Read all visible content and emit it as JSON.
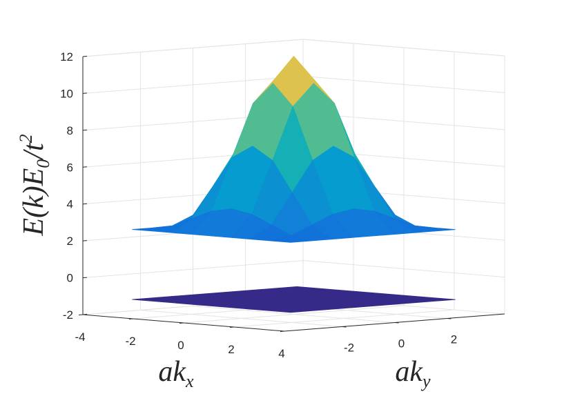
{
  "chart_data": {
    "type": "surface",
    "xlabel": [
      "ak",
      "x"
    ],
    "ylabel": [
      "ak",
      "y"
    ],
    "zlabel": [
      "E(k)E",
      "0",
      "/t",
      "2"
    ],
    "xlim": [
      -4,
      4
    ],
    "ylim": [
      -4.2,
      4.2
    ],
    "zlim": [
      -2,
      12
    ],
    "xticks": [
      -4,
      -2,
      0,
      2,
      4
    ],
    "yticks": [
      -2,
      0,
      2
    ],
    "zticks": [
      -2,
      0,
      2,
      4,
      6,
      8,
      10,
      12
    ],
    "grid": true,
    "colormap": "parula",
    "surfaces": [
      {
        "x": [
          -3.14,
          3.14
        ],
        "y": [
          -3.14,
          3.14
        ],
        "z": [
          [
            -1.2,
            -1.2
          ],
          [
            -1.2,
            -1.2
          ]
        ]
      },
      {
        "x": [
          -3.14,
          -2.36,
          -1.57,
          -0.79,
          0,
          0.79,
          1.57,
          2.36,
          3.14
        ],
        "y": [
          -3.14,
          -2.36,
          -1.57,
          -0.79,
          0,
          0.79,
          1.57,
          2.36,
          3.14
        ],
        "z": [
          [
            2.6,
            2.6,
            2.6,
            2.6,
            2.6,
            2.6,
            2.6,
            2.6,
            2.6
          ],
          [
            2.6,
            2.8,
            3.29,
            3.78,
            3.98,
            3.78,
            3.29,
            2.8,
            2.6
          ],
          [
            2.6,
            3.29,
            4.95,
            6.61,
            7.3,
            6.61,
            4.95,
            3.29,
            2.6
          ],
          [
            2.6,
            3.78,
            6.61,
            9.45,
            10.62,
            9.45,
            6.61,
            3.78,
            2.6
          ],
          [
            2.6,
            3.98,
            7.3,
            10.62,
            12,
            10.62,
            7.3,
            3.98,
            2.6
          ],
          [
            2.6,
            3.78,
            6.61,
            9.45,
            10.62,
            9.45,
            6.61,
            3.78,
            2.6
          ],
          [
            2.6,
            3.29,
            4.95,
            6.61,
            7.3,
            6.61,
            4.95,
            3.29,
            2.6
          ],
          [
            2.6,
            2.8,
            3.29,
            3.78,
            3.98,
            3.78,
            3.29,
            2.8,
            2.6
          ],
          [
            2.6,
            2.6,
            2.6,
            2.6,
            2.6,
            2.6,
            2.6,
            2.6,
            2.6
          ]
        ]
      }
    ]
  }
}
